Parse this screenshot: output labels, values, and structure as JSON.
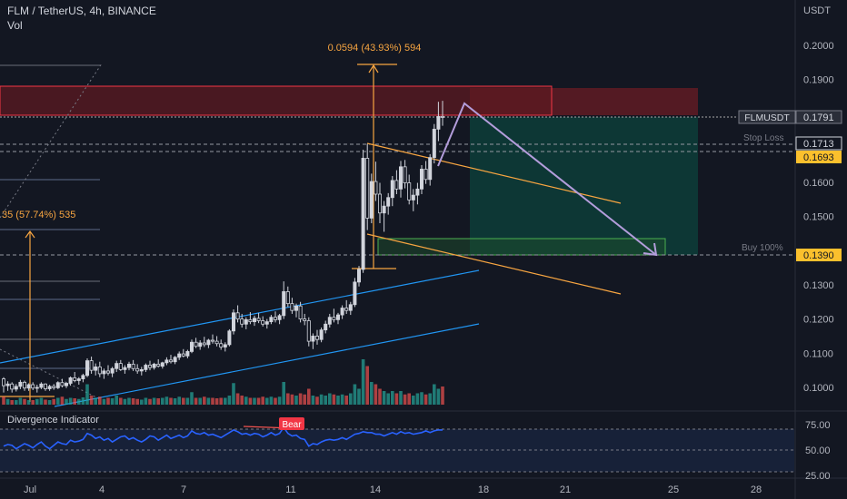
{
  "header": {
    "symbol_line": "FLM / TetherUS, 4h, BINANCE",
    "vol_label": "Vol",
    "currency": "USDT"
  },
  "chart_data": {
    "type": "candlestick",
    "ylim": [
      0.0935,
      0.2065
    ],
    "y_ticks": [
      "0.2000",
      "0.1900",
      "0.1600",
      "0.1500",
      "0.1300",
      "0.1200",
      "0.1100",
      "0.1000"
    ],
    "x_ticks": [
      "Jul",
      "4",
      "7",
      "11",
      "14",
      "18",
      "21",
      "25",
      "28"
    ],
    "price_labels": {
      "ticker": "FLMUSDT",
      "last_price": "0.1791",
      "stop_loss_label": "Stop Loss",
      "stop_loss": "0.1713",
      "target": "0.1693",
      "buy_label": "Buy 100%",
      "buy": "0.1390"
    },
    "annotations": {
      "measure_top": "0.0594 (43.93%) 594",
      "measure_left": "35 (57.74%) 535"
    },
    "colors": {
      "up": "#d1d4dc",
      "down": "#d1d4dc",
      "volume_up": "#26a69a",
      "volume_down": "#ef5350",
      "channel": "#2196f3",
      "wedge": "#f7a541",
      "arrow": "#b39ddb",
      "stop_zone": "#7a1f24",
      "profit_zone": "#0e4a43",
      "measure": "#f7a541"
    },
    "candles": [
      [
        0.1025,
        0.103,
        0.0985,
        0.1005
      ],
      [
        0.1005,
        0.1018,
        0.099,
        0.101
      ],
      [
        0.101,
        0.1015,
        0.0985,
        0.0995
      ],
      [
        0.0995,
        0.101,
        0.0988,
        0.1003
      ],
      [
        0.1003,
        0.1022,
        0.0995,
        0.1015
      ],
      [
        0.1015,
        0.102,
        0.099,
        0.0998
      ],
      [
        0.0998,
        0.1012,
        0.099,
        0.1008
      ],
      [
        0.1008,
        0.1015,
        0.0992,
        0.0998
      ],
      [
        0.0998,
        0.1008,
        0.0985,
        0.1
      ],
      [
        0.1,
        0.1015,
        0.0995,
        0.101
      ],
      [
        0.101,
        0.1012,
        0.099,
        0.0996
      ],
      [
        0.0996,
        0.1008,
        0.099,
        0.1003
      ],
      [
        0.1003,
        0.101,
        0.0993,
        0.0999
      ],
      [
        0.0999,
        0.1018,
        0.0995,
        0.1014
      ],
      [
        0.1014,
        0.1025,
        0.1,
        0.1005
      ],
      [
        0.1005,
        0.1015,
        0.0998,
        0.1012
      ],
      [
        0.1012,
        0.1032,
        0.1005,
        0.1028
      ],
      [
        0.1028,
        0.1045,
        0.1015,
        0.102
      ],
      [
        0.102,
        0.103,
        0.1008,
        0.1025
      ],
      [
        0.1025,
        0.104,
        0.1015,
        0.1035
      ],
      [
        0.1035,
        0.1085,
        0.103,
        0.1078
      ],
      [
        0.1078,
        0.109,
        0.104,
        0.105
      ],
      [
        0.105,
        0.107,
        0.1035,
        0.106
      ],
      [
        0.106,
        0.1075,
        0.103,
        0.104
      ],
      [
        0.104,
        0.1055,
        0.1025,
        0.1048
      ],
      [
        0.1048,
        0.1065,
        0.1035,
        0.1042
      ],
      [
        0.1042,
        0.106,
        0.103,
        0.1055
      ],
      [
        0.1055,
        0.1078,
        0.1045,
        0.107
      ],
      [
        0.107,
        0.108,
        0.1048,
        0.1052
      ],
      [
        0.1052,
        0.1065,
        0.104,
        0.1058
      ],
      [
        0.1058,
        0.1075,
        0.105,
        0.1068
      ],
      [
        0.1068,
        0.108,
        0.1048,
        0.1055
      ],
      [
        0.1055,
        0.1068,
        0.104,
        0.1048
      ],
      [
        0.1048,
        0.106,
        0.1035,
        0.1052
      ],
      [
        0.1052,
        0.107,
        0.1045,
        0.1065
      ],
      [
        0.1065,
        0.1078,
        0.105,
        0.1058
      ],
      [
        0.1058,
        0.1072,
        0.1052,
        0.1068
      ],
      [
        0.1068,
        0.1082,
        0.1058,
        0.1062
      ],
      [
        0.1062,
        0.1075,
        0.1055,
        0.1072
      ],
      [
        0.1072,
        0.1088,
        0.1065,
        0.108
      ],
      [
        0.108,
        0.1095,
        0.107,
        0.1075
      ],
      [
        0.1075,
        0.1092,
        0.1068,
        0.1088
      ],
      [
        0.1088,
        0.1105,
        0.108,
        0.1098
      ],
      [
        0.1098,
        0.1112,
        0.1088,
        0.1092
      ],
      [
        0.1092,
        0.111,
        0.1085,
        0.1105
      ],
      [
        0.1105,
        0.114,
        0.11,
        0.1132
      ],
      [
        0.1132,
        0.1145,
        0.1115,
        0.112
      ],
      [
        0.112,
        0.1138,
        0.111,
        0.113
      ],
      [
        0.113,
        0.1148,
        0.1118,
        0.1125
      ],
      [
        0.1125,
        0.1142,
        0.1115,
        0.1138
      ],
      [
        0.1138,
        0.1155,
        0.1128,
        0.1135
      ],
      [
        0.1135,
        0.115,
        0.112,
        0.1128
      ],
      [
        0.1128,
        0.114,
        0.111,
        0.1118
      ],
      [
        0.1118,
        0.1132,
        0.1105,
        0.1125
      ],
      [
        0.1125,
        0.117,
        0.112,
        0.1165
      ],
      [
        0.1165,
        0.1228,
        0.1155,
        0.1218
      ],
      [
        0.1218,
        0.124,
        0.119,
        0.12
      ],
      [
        0.12,
        0.1215,
        0.1175,
        0.1185
      ],
      [
        0.1185,
        0.1205,
        0.117,
        0.1198
      ],
      [
        0.1198,
        0.122,
        0.1185,
        0.1192
      ],
      [
        0.1192,
        0.121,
        0.118,
        0.1202
      ],
      [
        0.1202,
        0.1218,
        0.1188,
        0.1195
      ],
      [
        0.1195,
        0.1208,
        0.1178,
        0.1185
      ],
      [
        0.1185,
        0.12,
        0.1172,
        0.1192
      ],
      [
        0.1192,
        0.1212,
        0.1185,
        0.1205
      ],
      [
        0.1205,
        0.1222,
        0.119,
        0.1198
      ],
      [
        0.1198,
        0.1215,
        0.1185,
        0.121
      ],
      [
        0.121,
        0.131,
        0.12,
        0.128
      ],
      [
        0.128,
        0.1295,
        0.1235,
        0.1245
      ],
      [
        0.1245,
        0.1262,
        0.1215,
        0.1225
      ],
      [
        0.1225,
        0.1245,
        0.1205,
        0.1238
      ],
      [
        0.1238,
        0.125,
        0.119,
        0.12
      ],
      [
        0.12,
        0.1215,
        0.1182,
        0.1195
      ],
      [
        0.1195,
        0.1205,
        0.112,
        0.1135
      ],
      [
        0.1135,
        0.1158,
        0.1112,
        0.115
      ],
      [
        0.115,
        0.1168,
        0.1125,
        0.114
      ],
      [
        0.114,
        0.1175,
        0.1132,
        0.1168
      ],
      [
        0.1168,
        0.1195,
        0.1158,
        0.1185
      ],
      [
        0.1185,
        0.1215,
        0.1175,
        0.1205
      ],
      [
        0.1205,
        0.123,
        0.119,
        0.1198
      ],
      [
        0.1198,
        0.1218,
        0.1185,
        0.1212
      ],
      [
        0.1212,
        0.124,
        0.12,
        0.1232
      ],
      [
        0.1232,
        0.1255,
        0.1215,
        0.1225
      ],
      [
        0.1225,
        0.125,
        0.1212,
        0.1242
      ],
      [
        0.1242,
        0.132,
        0.1235,
        0.1308
      ],
      [
        0.1308,
        0.1355,
        0.1295,
        0.1345
      ],
      [
        0.1345,
        0.1695,
        0.1335,
        0.167
      ],
      [
        0.167,
        0.1712,
        0.146,
        0.1495
      ],
      [
        0.1495,
        0.1625,
        0.148,
        0.1602
      ],
      [
        0.1602,
        0.166,
        0.1545,
        0.1565
      ],
      [
        0.1565,
        0.1598,
        0.148,
        0.151
      ],
      [
        0.151,
        0.1545,
        0.1455,
        0.153
      ],
      [
        0.153,
        0.1568,
        0.1505,
        0.1555
      ],
      [
        0.1555,
        0.1618,
        0.153,
        0.1605
      ],
      [
        0.1605,
        0.1635,
        0.1565,
        0.158
      ],
      [
        0.158,
        0.1662,
        0.1555,
        0.1645
      ],
      [
        0.1645,
        0.1665,
        0.1582,
        0.1598
      ],
      [
        0.1598,
        0.1622,
        0.1535,
        0.1548
      ],
      [
        0.1548,
        0.158,
        0.1515,
        0.1562
      ],
      [
        0.1562,
        0.1598,
        0.1535,
        0.158
      ],
      [
        0.158,
        0.165,
        0.1565,
        0.1638
      ],
      [
        0.1638,
        0.1662,
        0.1595,
        0.1608
      ],
      [
        0.1608,
        0.1682,
        0.159,
        0.1672
      ],
      [
        0.1672,
        0.177,
        0.1655,
        0.1755
      ],
      [
        0.1755,
        0.1835,
        0.172,
        0.1792
      ],
      [
        0.1792,
        0.1838,
        0.1765,
        0.1791
      ]
    ],
    "volumes": [
      0.35,
      0.25,
      0.2,
      0.2,
      0.3,
      0.25,
      0.2,
      0.2,
      0.25,
      0.3,
      0.22,
      0.2,
      0.25,
      0.3,
      0.35,
      0.25,
      0.3,
      0.28,
      0.25,
      0.32,
      0.9,
      0.4,
      0.3,
      0.35,
      0.25,
      0.3,
      0.28,
      0.4,
      0.3,
      0.25,
      0.3,
      0.28,
      0.25,
      0.22,
      0.3,
      0.25,
      0.3,
      0.28,
      0.3,
      0.35,
      0.3,
      0.28,
      0.35,
      0.3,
      0.3,
      0.55,
      0.3,
      0.3,
      0.35,
      0.3,
      0.3,
      0.28,
      0.3,
      0.3,
      0.4,
      0.95,
      0.5,
      0.4,
      0.35,
      0.3,
      0.3,
      0.3,
      0.35,
      0.3,
      0.35,
      0.3,
      0.35,
      1.0,
      0.5,
      0.45,
      0.4,
      0.5,
      0.45,
      0.7,
      0.4,
      0.35,
      0.45,
      0.4,
      0.5,
      0.45,
      0.4,
      0.45,
      0.4,
      0.5,
      0.9,
      0.7,
      2.0,
      1.7,
      1.0,
      0.9,
      0.7,
      0.6,
      0.5,
      0.6,
      0.5,
      0.6,
      0.45,
      0.5,
      0.4,
      0.5,
      0.55,
      0.45,
      0.5,
      0.9,
      0.7,
      0.8
    ],
    "divergence_indicator": {
      "title": "Divergence Indicator",
      "badge": "Bear",
      "levels": [
        "75.00",
        "50.00",
        "25.00"
      ],
      "ylim": [
        22,
        82
      ],
      "values": [
        55,
        57,
        56,
        52,
        55,
        58,
        56,
        53,
        57,
        60,
        55,
        52,
        56,
        60,
        58,
        57,
        62,
        60,
        61,
        63,
        70,
        68,
        64,
        66,
        62,
        64,
        60,
        63,
        66,
        67,
        63,
        65,
        62,
        60,
        63,
        67,
        66,
        62,
        65,
        68,
        64,
        66,
        68,
        65,
        67,
        73,
        70,
        69,
        71,
        68,
        69,
        67,
        65,
        68,
        71,
        74,
        72,
        69,
        70,
        68,
        70,
        69,
        66,
        68,
        71,
        68,
        70,
        77,
        70,
        67,
        68,
        64,
        63,
        55,
        58,
        57,
        60,
        62,
        63,
        62,
        63,
        65,
        63,
        66,
        69,
        70,
        72,
        71,
        71,
        69,
        69,
        67,
        69,
        71,
        69,
        72,
        70,
        71,
        69,
        70,
        71,
        73,
        71,
        73,
        74,
        74
      ]
    }
  }
}
